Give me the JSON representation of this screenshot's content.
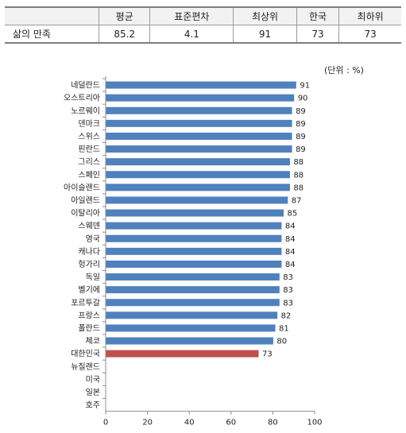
{
  "table": {
    "headers": [
      "",
      "평균",
      "표준편차",
      "최상위",
      "한국",
      "최하위"
    ],
    "row": {
      "label": "삶의 만족",
      "values": [
        "85.2",
        "4.1",
        "91",
        "73",
        "73"
      ]
    }
  },
  "unit_note": "(단위 : %)",
  "chart_data": {
    "type": "bar",
    "orientation": "horizontal",
    "categories": [
      "네덜란드",
      "오스트리아",
      "노르웨이",
      "덴마크",
      "스위스",
      "핀란드",
      "그리스",
      "스페인",
      "아이슬랜드",
      "아일랜드",
      "이탈리아",
      "스웨덴",
      "영국",
      "캐나다",
      "헝가리",
      "독일",
      "벨기에",
      "포르투갈",
      "프랑스",
      "폴란드",
      "체코",
      "대한민국",
      "뉴질랜드",
      "미국",
      "일본",
      "호주"
    ],
    "values": [
      91,
      90,
      89,
      89,
      89,
      89,
      88,
      88,
      88,
      87,
      85,
      84,
      84,
      84,
      84,
      83,
      83,
      83,
      82,
      81,
      80,
      73,
      null,
      null,
      null,
      null
    ],
    "xlim": [
      0,
      100
    ],
    "xticks": [
      0,
      20,
      40,
      60,
      80,
      100
    ],
    "colors": {
      "default": "#4f81bd",
      "highlight": "#c0504d"
    },
    "highlight": "대한민국",
    "grid": false,
    "legend": "none"
  }
}
